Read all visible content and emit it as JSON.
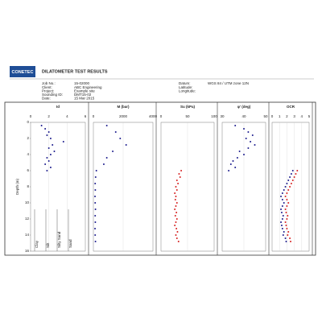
{
  "header": {
    "logo": "CONETEC",
    "title": "DILATOMETER TEST RESULTS",
    "fields": [
      {
        "label": "Job No.:",
        "value": "15-02000"
      },
      {
        "label": "Client:",
        "value": "ABC Engineering"
      },
      {
        "label": "Project:",
        "value": "Example site"
      },
      {
        "label": "Sounding ID:",
        "value": "DMT15-02"
      },
      {
        "label": "Date:",
        "value": "15 Mar 2015"
      }
    ],
    "location": [
      {
        "label": "Datum:",
        "value": "WGS 84 / UTM zone 12N"
      },
      {
        "label": "Latitude:"
      },
      {
        "label": "Longitude:"
      }
    ]
  },
  "chart_data": [
    {
      "type": "scatter",
      "title": "Id",
      "ylabel": "Depth (m)",
      "xlim": [
        0,
        6
      ],
      "xticks": [
        0,
        2,
        4,
        6
      ],
      "ylim": [
        0,
        16
      ],
      "yticks": [
        0,
        2,
        4,
        6,
        8,
        10,
        12,
        14,
        16
      ],
      "soil_labels": [
        "Clay",
        "Silt",
        "Silty Sand",
        "Sand"
      ],
      "y": [
        0.4,
        0.8,
        1.2,
        1.6,
        2.0,
        2.4,
        2.8,
        3.2,
        3.6,
        4.0,
        4.4,
        4.8,
        5.2,
        5.6,
        6.0
      ],
      "series": [
        {
          "color": "#1a1a8c",
          "values": [
            1.2,
            1.6,
            2.0,
            1.8,
            2.2,
            3.6,
            2.4,
            2.0,
            2.6,
            2.2,
            1.8,
            2.0,
            1.6,
            2.2,
            1.8
          ]
        }
      ]
    },
    {
      "type": "scatter",
      "title": "M (bar)",
      "xlim": [
        0,
        4000
      ],
      "xticks": [
        0,
        2000,
        4000
      ],
      "ylim": [
        0,
        16
      ],
      "y": [
        0.4,
        1.2,
        2.0,
        2.8,
        3.6,
        4.4,
        5.2,
        6.0,
        6.8,
        7.6,
        8.4,
        9.2,
        10.0,
        10.8,
        11.6,
        12.4,
        13.2,
        14.0,
        14.8
      ],
      "series": [
        {
          "color": "#1a1a8c",
          "values": [
            900,
            1500,
            1800,
            2200,
            1300,
            900,
            700,
            200,
            150,
            120,
            130,
            110,
            120,
            140,
            120,
            130,
            110,
            120,
            140
          ]
        }
      ]
    },
    {
      "type": "scatter",
      "title": "Su (kPa)",
      "xlim": [
        0,
        100
      ],
      "xticks": [
        0,
        50,
        100
      ],
      "ylim": [
        0,
        16
      ],
      "y": [
        6.0,
        6.4,
        6.8,
        7.2,
        7.6,
        8.0,
        8.4,
        8.8,
        9.2,
        9.6,
        10.0,
        10.4,
        10.8,
        11.2,
        11.6,
        12.0,
        12.4,
        12.8,
        13.2,
        13.6,
        14.0,
        14.4,
        14.8
      ],
      "series": [
        {
          "color": "#d62020",
          "values": [
            38,
            34,
            36,
            30,
            32,
            28,
            30,
            26,
            28,
            27,
            30,
            28,
            26,
            29,
            27,
            30,
            28,
            26,
            29,
            31,
            28,
            30,
            33
          ]
        }
      ]
    },
    {
      "type": "scatter",
      "title": "φ' (deg)",
      "xlim": [
        30,
        50
      ],
      "xticks": [
        30,
        40,
        50
      ],
      "ylim": [
        0,
        16
      ],
      "y": [
        0.4,
        0.8,
        1.2,
        1.6,
        2.0,
        2.4,
        2.8,
        3.2,
        3.6,
        4.0,
        4.4,
        4.8,
        5.2,
        5.6,
        6.0
      ],
      "series": [
        {
          "color": "#1a1a8c",
          "values": [
            36,
            40,
            42,
            44,
            41,
            43,
            45,
            42,
            38,
            40,
            37,
            35,
            34,
            36,
            33
          ]
        }
      ]
    },
    {
      "type": "scatter",
      "title": "OCR",
      "xlim": [
        0,
        5
      ],
      "xticks": [
        0,
        1,
        2,
        3,
        4,
        5
      ],
      "ylim": [
        0,
        16
      ],
      "y": [
        6.0,
        6.4,
        6.8,
        7.2,
        7.6,
        8.0,
        8.4,
        8.8,
        9.2,
        9.6,
        10.0,
        10.4,
        10.8,
        11.2,
        11.6,
        12.0,
        12.4,
        12.8,
        13.2,
        13.6,
        14.0,
        14.4,
        14.8
      ],
      "series": [
        {
          "color": "#1a1a8c",
          "values": [
            2.8,
            2.6,
            2.4,
            2.2,
            2.0,
            1.8,
            1.6,
            1.4,
            1.2,
            1.4,
            1.6,
            1.4,
            1.2,
            1.3,
            1.5,
            1.4,
            1.2,
            1.3,
            1.4,
            1.6,
            1.5,
            1.8,
            1.9
          ]
        },
        {
          "color": "#d62020",
          "values": [
            3.4,
            3.2,
            3.0,
            2.8,
            2.6,
            2.4,
            2.2,
            2.0,
            1.8,
            2.0,
            2.2,
            2.0,
            1.8,
            1.9,
            2.1,
            2.0,
            1.8,
            1.9,
            2.0,
            2.2,
            2.1,
            2.4,
            2.5
          ]
        }
      ]
    }
  ]
}
